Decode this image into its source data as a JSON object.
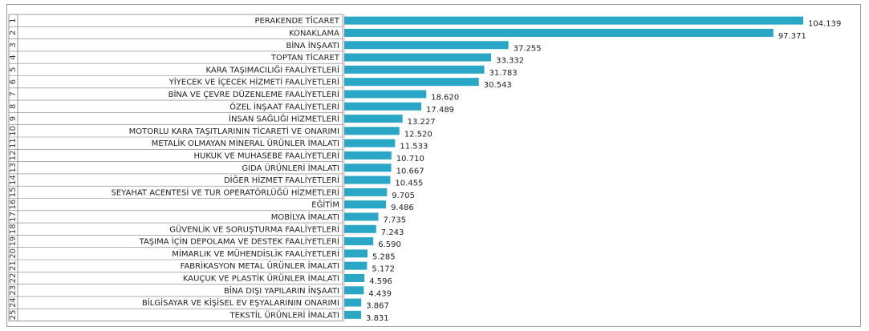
{
  "chart_data": {
    "type": "bar",
    "orientation": "horizontal",
    "title": "",
    "xlabel": "",
    "ylabel": "",
    "grid": false,
    "legend": "none",
    "bar_color": "#2aa7c6",
    "xlim": [
      0,
      104139
    ],
    "ranks": [
      "1",
      "2",
      "3",
      "4",
      "5",
      "6",
      "7",
      "8",
      "9",
      "10",
      "11",
      "12",
      "13",
      "14",
      "15",
      "16",
      "17",
      "18",
      "19",
      "20",
      "21",
      "22",
      "23",
      "24",
      "25"
    ],
    "categories": [
      "PERAKENDE TİCARET",
      "KONAKLAMA",
      "BİNA İNŞAATI",
      "TOPTAN TİCARET",
      "KARA TAŞIMACILIĞI FAALİYETLERİ",
      "YİYECEK VE İÇECEK HİZMETİ FAALİYETLERİ",
      "BİNA VE ÇEVRE DÜZENLEME FAALİYETLERİ",
      "ÖZEL İNŞAAT FAALİYETLERİ",
      "İNSAN SAĞLIĞI HİZMETLERİ",
      "MOTORLU KARA TAŞITLARININ TİCARETİ VE ONARIMI",
      "METALİK OLMAYAN MİNERAL ÜRÜNLER İMALATI",
      "HUKUK VE MUHASEBE FAALİYETLERİ",
      "GIDA ÜRÜNLERİ İMALATI",
      "DİĞER HİZMET FAALİYETLERİ",
      "SEYAHAT ACENTESİ VE TUR OPERATÖRLÜĞÜ HİZMETLERİ",
      "EĞİTİM",
      "MOBİLYA İMALATI",
      "GÜVENLİK VE SORUŞTURMA FAALİYETLERİ",
      "TAŞIMA İÇİN DEPOLAMA VE DESTEK FAALİYETLERİ",
      "MİMARLIK VE MÜHENDİSLİK FAALİYETLERİ",
      "FABRİKASYON METAL ÜRÜNLER İMALATI",
      "KAUÇUK VE PLASTİK ÜRÜNLER İMALATI",
      "BİNA DIŞI YAPILARIN İNŞAATI",
      "BİLGİSAYAR VE KİŞİSEL EV EŞYALARININ ONARIMI",
      "TEKSTİL ÜRÜNLERİ İMALATI"
    ],
    "values": [
      104139,
      97371,
      37255,
      33332,
      31783,
      30543,
      18620,
      17489,
      13227,
      12520,
      11533,
      10710,
      10667,
      10455,
      9705,
      9486,
      7735,
      7243,
      6590,
      5285,
      5172,
      4596,
      4439,
      3867,
      3831
    ],
    "value_labels": [
      "104.139",
      "97.371",
      "37.255",
      "33.332",
      "31.783",
      "30.543",
      "18.620",
      "17.489",
      "13.227",
      "12.520",
      "11.533",
      "10.710",
      "10.667",
      "10.455",
      "9.705",
      "9.486",
      "7.735",
      "7.243",
      "6.590",
      "5.285",
      "5.172",
      "4.596",
      "4.439",
      "3.867",
      "3.831"
    ]
  }
}
